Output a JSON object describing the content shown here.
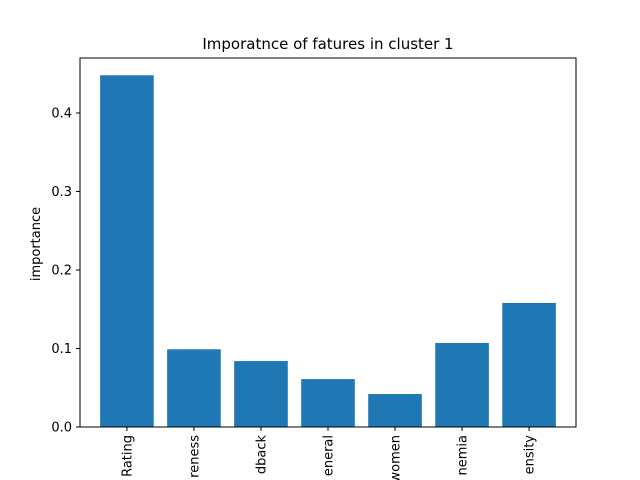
{
  "chart_data": {
    "type": "bar",
    "title": "Imporatnce of fatures in cluster 1",
    "xlabel": "",
    "ylabel": "importance",
    "categories": [
      "Rating",
      "reness",
      "dback",
      "eneral",
      "women",
      "nemia",
      "ensity"
    ],
    "values": [
      0.448,
      0.099,
      0.084,
      0.061,
      0.042,
      0.107,
      0.158
    ],
    "ylim": [
      0,
      0.47
    ],
    "yticks": [
      0.0,
      0.1,
      0.2,
      0.3,
      0.4
    ],
    "ytick_labels": [
      "0.0",
      "0.1",
      "0.2",
      "0.3",
      "0.4"
    ],
    "bar_color": "#1f77b4",
    "grid": false,
    "legend": "none"
  }
}
